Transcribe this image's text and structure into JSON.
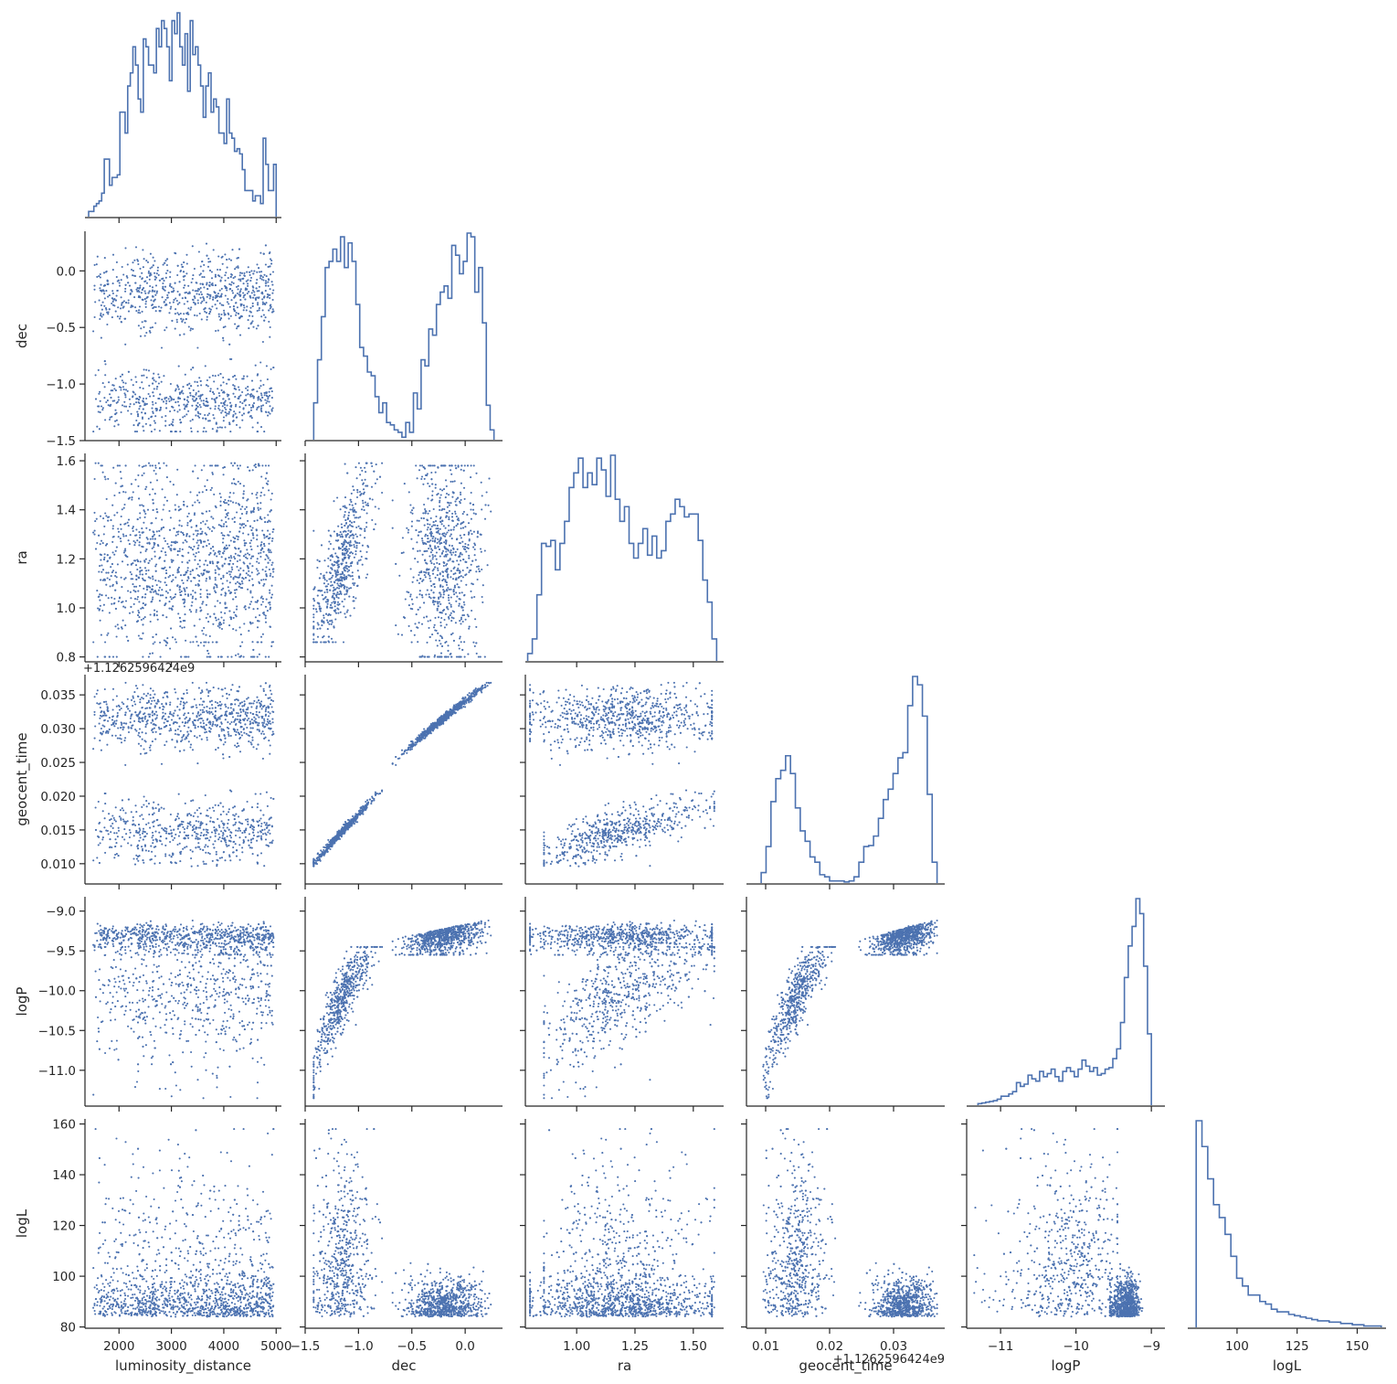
{
  "chart_data": {
    "type": "scatter",
    "layout": "corner-plot",
    "variables": [
      "luminosity_distance",
      "dec",
      "ra",
      "geocent_time",
      "logP",
      "logL"
    ],
    "axis_labels": {
      "luminosity_distance": "luminosity_distance",
      "dec": "dec",
      "ra": "ra",
      "geocent_time": "geocent_time",
      "logP": "logP",
      "logL": "logL"
    },
    "offset_text": {
      "geocent_time": "+1.12625964​24e9"
    },
    "ranges": {
      "luminosity_distance": [
        1350,
        5100
      ],
      "dec": [
        -1.5,
        0.35
      ],
      "ra": [
        0.78,
        1.63
      ],
      "geocent_time": [
        0.007,
        0.038
      ],
      "logP": [
        -11.45,
        -8.82
      ],
      "logL": [
        79.5,
        162
      ]
    },
    "ticks": {
      "luminosity_distance": [
        2000,
        3000,
        4000,
        5000
      ],
      "dec": [
        -1.5,
        -1.0,
        -0.5,
        0.0
      ],
      "ra": [
        0.8,
        1.0,
        1.2,
        1.4,
        1.6
      ],
      "ra_x": [
        1.0,
        1.25,
        1.5
      ],
      "geocent_time": [
        0.01,
        0.015,
        0.02,
        0.025,
        0.03,
        0.035
      ],
      "geocent_time_x": [
        0.01,
        0.02,
        0.03
      ],
      "logP": [
        -11.0,
        -10.5,
        -10.0,
        -9.5,
        -9.0
      ],
      "logP_x": [
        -11,
        -10,
        -9
      ],
      "logL": [
        80,
        100,
        120,
        140,
        160
      ],
      "logL_x": [
        100,
        125,
        150
      ]
    },
    "tick_labels": {
      "luminosity_distance": [
        "2000",
        "3000",
        "4000",
        "5000"
      ],
      "dec_y": [
        "−1.5",
        "−1.0",
        "−0.5",
        "0.0"
      ],
      "dec_x": [
        "−1.5",
        "−1.0",
        "−0.5",
        "0.0"
      ],
      "ra_y": [
        "0.8",
        "1.0",
        "1.2",
        "1.4",
        "1.6"
      ],
      "ra_x": [
        "1.00",
        "1.25",
        "1.50"
      ],
      "geocent_time_y": [
        "0.010",
        "0.015",
        "0.020",
        "0.025",
        "0.030",
        "0.035"
      ],
      "geocent_time_x": [
        "0.01",
        "0.02",
        "0.03"
      ],
      "logP_y": [
        "−11.0",
        "−10.5",
        "−10.0",
        "−9.5",
        "−9.0"
      ],
      "logP_x": [
        "−11",
        "−10",
        "−9"
      ],
      "logL_y": [
        "80",
        "100",
        "120",
        "140",
        "160"
      ],
      "logL_x": [
        "100",
        "125",
        "150"
      ]
    },
    "histograms": {
      "luminosity_distance": {
        "edges": [
          1420,
          5000
        ],
        "counts": [
          2,
          2,
          4,
          5,
          6,
          9,
          22,
          22,
          12,
          15,
          15,
          16,
          40,
          40,
          32,
          50,
          55,
          65,
          58,
          45,
          40,
          68,
          65,
          58,
          58,
          55,
          72,
          65,
          75,
          72,
          65,
          52,
          75,
          70,
          78,
          65,
          58,
          70,
          48,
          75,
          62,
          65,
          58,
          50,
          38,
          50,
          55,
          40,
          45,
          42,
          32,
          32,
          28,
          45,
          32,
          30,
          25,
          26,
          24,
          18,
          10,
          10,
          10,
          6,
          8,
          8,
          5,
          30,
          20,
          10,
          10,
          20
        ]
      },
      "dec": {
        "edges": [
          -1.42,
          0.27
        ],
        "counts": [
          30,
          65,
          100,
          140,
          145,
          155,
          145,
          165,
          140,
          160,
          145,
          110,
          75,
          68,
          55,
          52,
          35,
          22,
          30,
          14,
          12,
          8,
          6,
          2,
          14,
          6,
          38,
          25,
          65,
          60,
          90,
          85,
          110,
          120,
          125,
          115,
          158,
          150,
          135,
          145,
          168,
          165,
          120,
          140,
          95,
          28,
          8
        ]
      },
      "ra": {
        "edges": [
          0.79,
          1.6
        ],
        "counts": [
          5,
          15,
          45,
          80,
          78,
          82,
          62,
          80,
          95,
          118,
          128,
          138,
          118,
          128,
          120,
          138,
          130,
          112,
          140,
          110,
          95,
          105,
          80,
          70,
          80,
          90,
          72,
          85,
          70,
          75,
          95,
          100,
          110,
          105,
          98,
          100,
          100,
          82,
          55,
          40,
          15
        ]
      },
      "geocent_time": {
        "edges": [
          0.0093,
          0.0368
        ],
        "counts": [
          10,
          35,
          78,
          100,
          108,
          122,
          105,
          72,
          50,
          40,
          25,
          20,
          8,
          6,
          2,
          2,
          2,
          1,
          2,
          6,
          20,
          35,
          36,
          45,
          62,
          80,
          90,
          105,
          120,
          125,
          170,
          198,
          190,
          160,
          85,
          20
        ]
      },
      "logP": {
        "edges": [
          -11.3,
          -9.0
        ],
        "counts": [
          2,
          3,
          4,
          5,
          6,
          8,
          12,
          12,
          15,
          18,
          30,
          25,
          28,
          40,
          35,
          32,
          45,
          38,
          42,
          48,
          38,
          32,
          45,
          50,
          45,
          38,
          48,
          60,
          52,
          45,
          50,
          40,
          42,
          48,
          50,
          62,
          75,
          110,
          170,
          212,
          238,
          275,
          255,
          185,
          95
        ]
      },
      "logL": {
        "edges": [
          83,
          160
        ],
        "counts": [
          160,
          140,
          115,
          95,
          85,
          72,
          55,
          38,
          32,
          25,
          25,
          20,
          18,
          14,
          12,
          12,
          10,
          9,
          8,
          7,
          6,
          5,
          5,
          4,
          4,
          3,
          3,
          2,
          2,
          1,
          1,
          1
        ]
      }
    },
    "series": [
      {
        "name": "luminosity_distance vs dec"
      },
      {
        "name": "luminosity_distance vs ra"
      },
      {
        "name": "luminosity_distance vs geocent_time"
      },
      {
        "name": "luminosity_distance vs logP"
      },
      {
        "name": "luminosity_distance vs logL"
      },
      {
        "name": "dec vs ra"
      },
      {
        "name": "dec vs geocent_time"
      },
      {
        "name": "dec vs logP"
      },
      {
        "name": "dec vs logL"
      },
      {
        "name": "ra vs geocent_time"
      },
      {
        "name": "ra vs logP"
      },
      {
        "name": "ra vs logL"
      },
      {
        "name": "geocent_time vs logP"
      },
      {
        "name": "geocent_time vs logL"
      },
      {
        "name": "logP vs logL"
      }
    ],
    "point_color": "#4c72b0",
    "histogram_color": "#4c72b0",
    "histtype": "step",
    "grid": false,
    "legend": "none"
  }
}
